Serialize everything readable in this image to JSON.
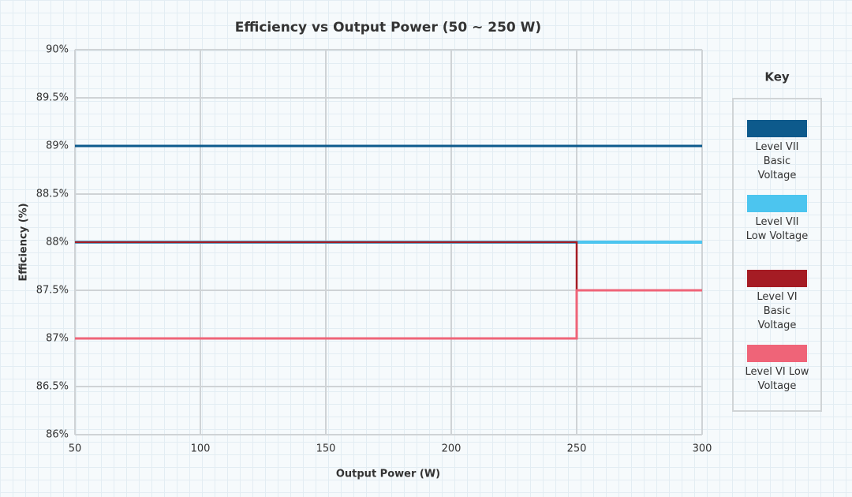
{
  "chart_data": {
    "type": "line",
    "title": "Efficiency vs Output Power (50 ~ 250 W)",
    "x_label": "Output Power (W)",
    "y_label": "Efficiency (%)",
    "xlim": [
      50,
      300
    ],
    "xticks": [
      50,
      100,
      150,
      200,
      250,
      300
    ],
    "ylim": [
      86,
      90
    ],
    "yticks": [
      {
        "value": 86,
        "label": "86%"
      },
      {
        "value": 86.5,
        "label": "86.5%"
      },
      {
        "value": 87,
        "label": "87%"
      },
      {
        "value": 87.5,
        "label": "87.5%"
      },
      {
        "value": 88,
        "label": "88%"
      },
      {
        "value": 88.5,
        "label": "88.5%"
      },
      {
        "value": 89,
        "label": "89%"
      },
      {
        "value": 89.5,
        "label": "89.5%"
      },
      {
        "value": 90,
        "label": "90%"
      }
    ],
    "grid": true,
    "legend_title": "Key",
    "legend_position": "right",
    "series": [
      {
        "name": "Level VII Basic Voltage",
        "color": "#0d5a8c",
        "x": [
          50,
          300
        ],
        "values": [
          89,
          89
        ]
      },
      {
        "name": "Level VII Low Voltage",
        "color": "#4cc5ef",
        "x": [
          50,
          300
        ],
        "values": [
          88,
          88
        ]
      },
      {
        "name": "Level VI Basic Voltage",
        "color": "#a51c24",
        "x": [
          50,
          250,
          250,
          300
        ],
        "values": [
          88,
          88,
          87.5,
          87.5
        ]
      },
      {
        "name": "Level VI Low Voltage",
        "color": "#ef6478",
        "x": [
          50,
          250,
          250,
          300
        ],
        "values": [
          87,
          87,
          87.5,
          87.5
        ]
      }
    ]
  }
}
